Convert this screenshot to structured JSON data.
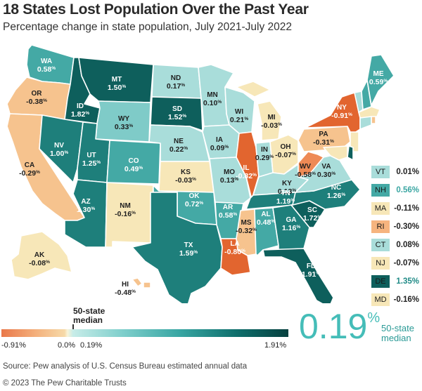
{
  "title": "18 States Lost Population Over the Past Year",
  "subtitle": "Percentage change in state population, July 2021-July 2022",
  "colors": {
    "dark_teal": "#0e5f5c",
    "mid_dark_teal": "#1e7f7b",
    "teal": "#44a9a5",
    "light_teal": "#7fcbc8",
    "pale_teal": "#a9ddda",
    "cream": "#f7e7b8",
    "light_orange": "#f6c38e",
    "orange": "#ee8a55",
    "dark_orange": "#e2652f"
  },
  "states": [
    {
      "code": "WA",
      "value": "0.58",
      "unit": "%"
    },
    {
      "code": "OR",
      "value": "-0.38",
      "unit": "%"
    },
    {
      "code": "CA",
      "value": "-0.29",
      "unit": "%"
    },
    {
      "code": "NV",
      "value": "1.00",
      "unit": "%"
    },
    {
      "code": "ID",
      "value": "1.82",
      "unit": "%"
    },
    {
      "code": "MT",
      "value": "1.50",
      "unit": "%"
    },
    {
      "code": "WY",
      "value": "0.33",
      "unit": "%"
    },
    {
      "code": "UT",
      "value": "1.25",
      "unit": "%"
    },
    {
      "code": "AZ",
      "value": "1.30",
      "unit": "%"
    },
    {
      "code": "CO",
      "value": "0.49",
      "unit": "%"
    },
    {
      "code": "NM",
      "value": "-0.16",
      "unit": "%"
    },
    {
      "code": "ND",
      "value": "0.17",
      "unit": "%"
    },
    {
      "code": "SD",
      "value": "1.52",
      "unit": "%"
    },
    {
      "code": "NE",
      "value": "0.22",
      "unit": "%"
    },
    {
      "code": "KS",
      "value": "-0.03",
      "unit": "%"
    },
    {
      "code": "OK",
      "value": "0.72",
      "unit": "%"
    },
    {
      "code": "TX",
      "value": "1.59",
      "unit": "%"
    },
    {
      "code": "MN",
      "value": "0.10",
      "unit": "%"
    },
    {
      "code": "IA",
      "value": "0.09",
      "unit": "%"
    },
    {
      "code": "MO",
      "value": "0.13",
      "unit": "%"
    },
    {
      "code": "AR",
      "value": "0.58",
      "unit": "%"
    },
    {
      "code": "LA",
      "value": "-0.80",
      "unit": "%"
    },
    {
      "code": "WI",
      "value": "0.21",
      "unit": "%"
    },
    {
      "code": "IL",
      "value": "-0.82",
      "unit": "%"
    },
    {
      "code": "MI",
      "value": "-0.03",
      "unit": "%"
    },
    {
      "code": "IN",
      "value": "0.29",
      "unit": "%"
    },
    {
      "code": "OH",
      "value": "-0.07",
      "unit": "%"
    },
    {
      "code": "KY",
      "value": "0.13",
      "unit": "%"
    },
    {
      "code": "TN",
      "value": "1.19",
      "unit": "%"
    },
    {
      "code": "MS",
      "value": "-0.32",
      "unit": "%"
    },
    {
      "code": "AL",
      "value": "0.48",
      "unit": "%"
    },
    {
      "code": "GA",
      "value": "1.16",
      "unit": "%"
    },
    {
      "code": "FL",
      "value": "1.91",
      "unit": "%"
    },
    {
      "code": "SC",
      "value": "1.72",
      "unit": "%"
    },
    {
      "code": "NC",
      "value": "1.26",
      "unit": "%"
    },
    {
      "code": "VA",
      "value": "0.30",
      "unit": "%"
    },
    {
      "code": "WV",
      "value": "-0.58",
      "unit": "%"
    },
    {
      "code": "PA",
      "value": "-0.31",
      "unit": "%"
    },
    {
      "code": "NY",
      "value": "-0.91",
      "unit": "%"
    },
    {
      "code": "ME",
      "value": "0.59",
      "unit": "%"
    },
    {
      "code": "AK",
      "value": "-0.08",
      "unit": "%"
    },
    {
      "code": "HI",
      "value": "-0.48",
      "unit": "%"
    }
  ],
  "northeast": [
    {
      "code": "VT",
      "value": "0.01%",
      "color": "#a9ddda",
      "value_color": "#222222"
    },
    {
      "code": "NH",
      "value": "0.56%",
      "color": "#44a9a5",
      "value_color": "#3aa6a2"
    },
    {
      "code": "MA",
      "value": "-0.11%",
      "color": "#f7e7b8",
      "value_color": "#222222"
    },
    {
      "code": "RI",
      "value": "-0.30%",
      "color": "#f6b47f",
      "value_color": "#222222"
    },
    {
      "code": "CT",
      "value": "0.08%",
      "color": "#a9ddda",
      "value_color": "#222222"
    },
    {
      "code": "NJ",
      "value": "-0.07%",
      "color": "#f7e7b8",
      "value_color": "#222222"
    },
    {
      "code": "DE",
      "value": "1.35%",
      "color": "#0e5f5c",
      "value_color": "#1f8a86"
    },
    {
      "code": "MD",
      "value": "-0.16%",
      "color": "#f7e7b8",
      "value_color": "#222222"
    }
  ],
  "scale": {
    "median_label_line1": "50-state",
    "median_label_line2": "median",
    "min_label": "-0.91%",
    "zero_label": "0.0%",
    "median_value_label": "0.19%",
    "max_label": "1.91%",
    "min": -0.91,
    "zero": 0.0,
    "median": 0.19,
    "max": 1.91
  },
  "headline_median": {
    "value": "0.19",
    "unit": "%",
    "label_line1": "50-state",
    "label_line2": "median"
  },
  "source": "Source: Pew analysis of U.S. Census Bureau estimated annual data",
  "copyright": "© 2023 The Pew Charitable Trusts"
}
